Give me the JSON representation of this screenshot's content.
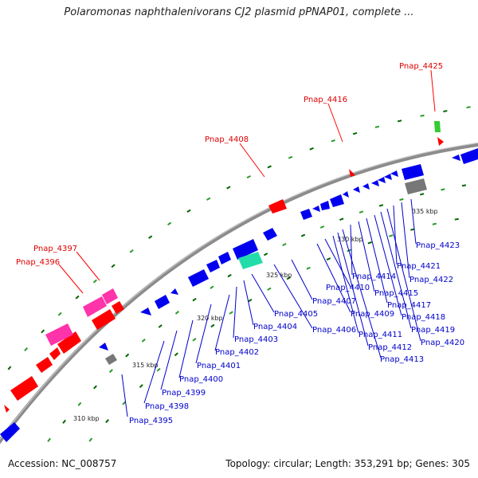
{
  "title": "Polaromonas naphthalenivorans CJ2 plasmid pPNAP01, complete ...",
  "footer": {
    "accession": "Accession: NC_008757",
    "summary": "Topology: circular; Length: 353,291 bp; Genes: 305"
  },
  "colors": {
    "backbone": "#8c8c8c",
    "forward_gene": "#ff0000",
    "reverse_gene": "#0000ee",
    "highlight_pink": "#ff33aa",
    "highlight_teal": "#22ddaa",
    "highlight_green": "#33cc33",
    "gray_gene": "#777777",
    "tick_green": "#006600",
    "label_red": "#dd0000",
    "label_blue": "#0000cc"
  },
  "ticks": [
    "310 kbp",
    "315 kbp",
    "320 kbp",
    "325 kbp",
    "330 kbp",
    "335 kbp"
  ],
  "red_labels": [
    "Pnap_4425",
    "Pnap_4416",
    "Pnap_4408",
    "Pnap_4397",
    "Pnap_4396"
  ],
  "blue_labels": [
    "Pnap_4395",
    "Pnap_4398",
    "Pnap_4399",
    "Pnap_4400",
    "Pnap_4401",
    "Pnap_4402",
    "Pnap_4403",
    "Pnap_4404",
    "Pnap_4405",
    "Pnap_4406",
    "Pnap_4407",
    "Pnap_4409",
    "Pnap_4410",
    "Pnap_4411",
    "Pnap_4412",
    "Pnap_4413",
    "Pnap_4414",
    "Pnap_4415",
    "Pnap_4417",
    "Pnap_4418",
    "Pnap_4419",
    "Pnap_4420",
    "Pnap_4421",
    "Pnap_4422",
    "Pnap_4423"
  ]
}
